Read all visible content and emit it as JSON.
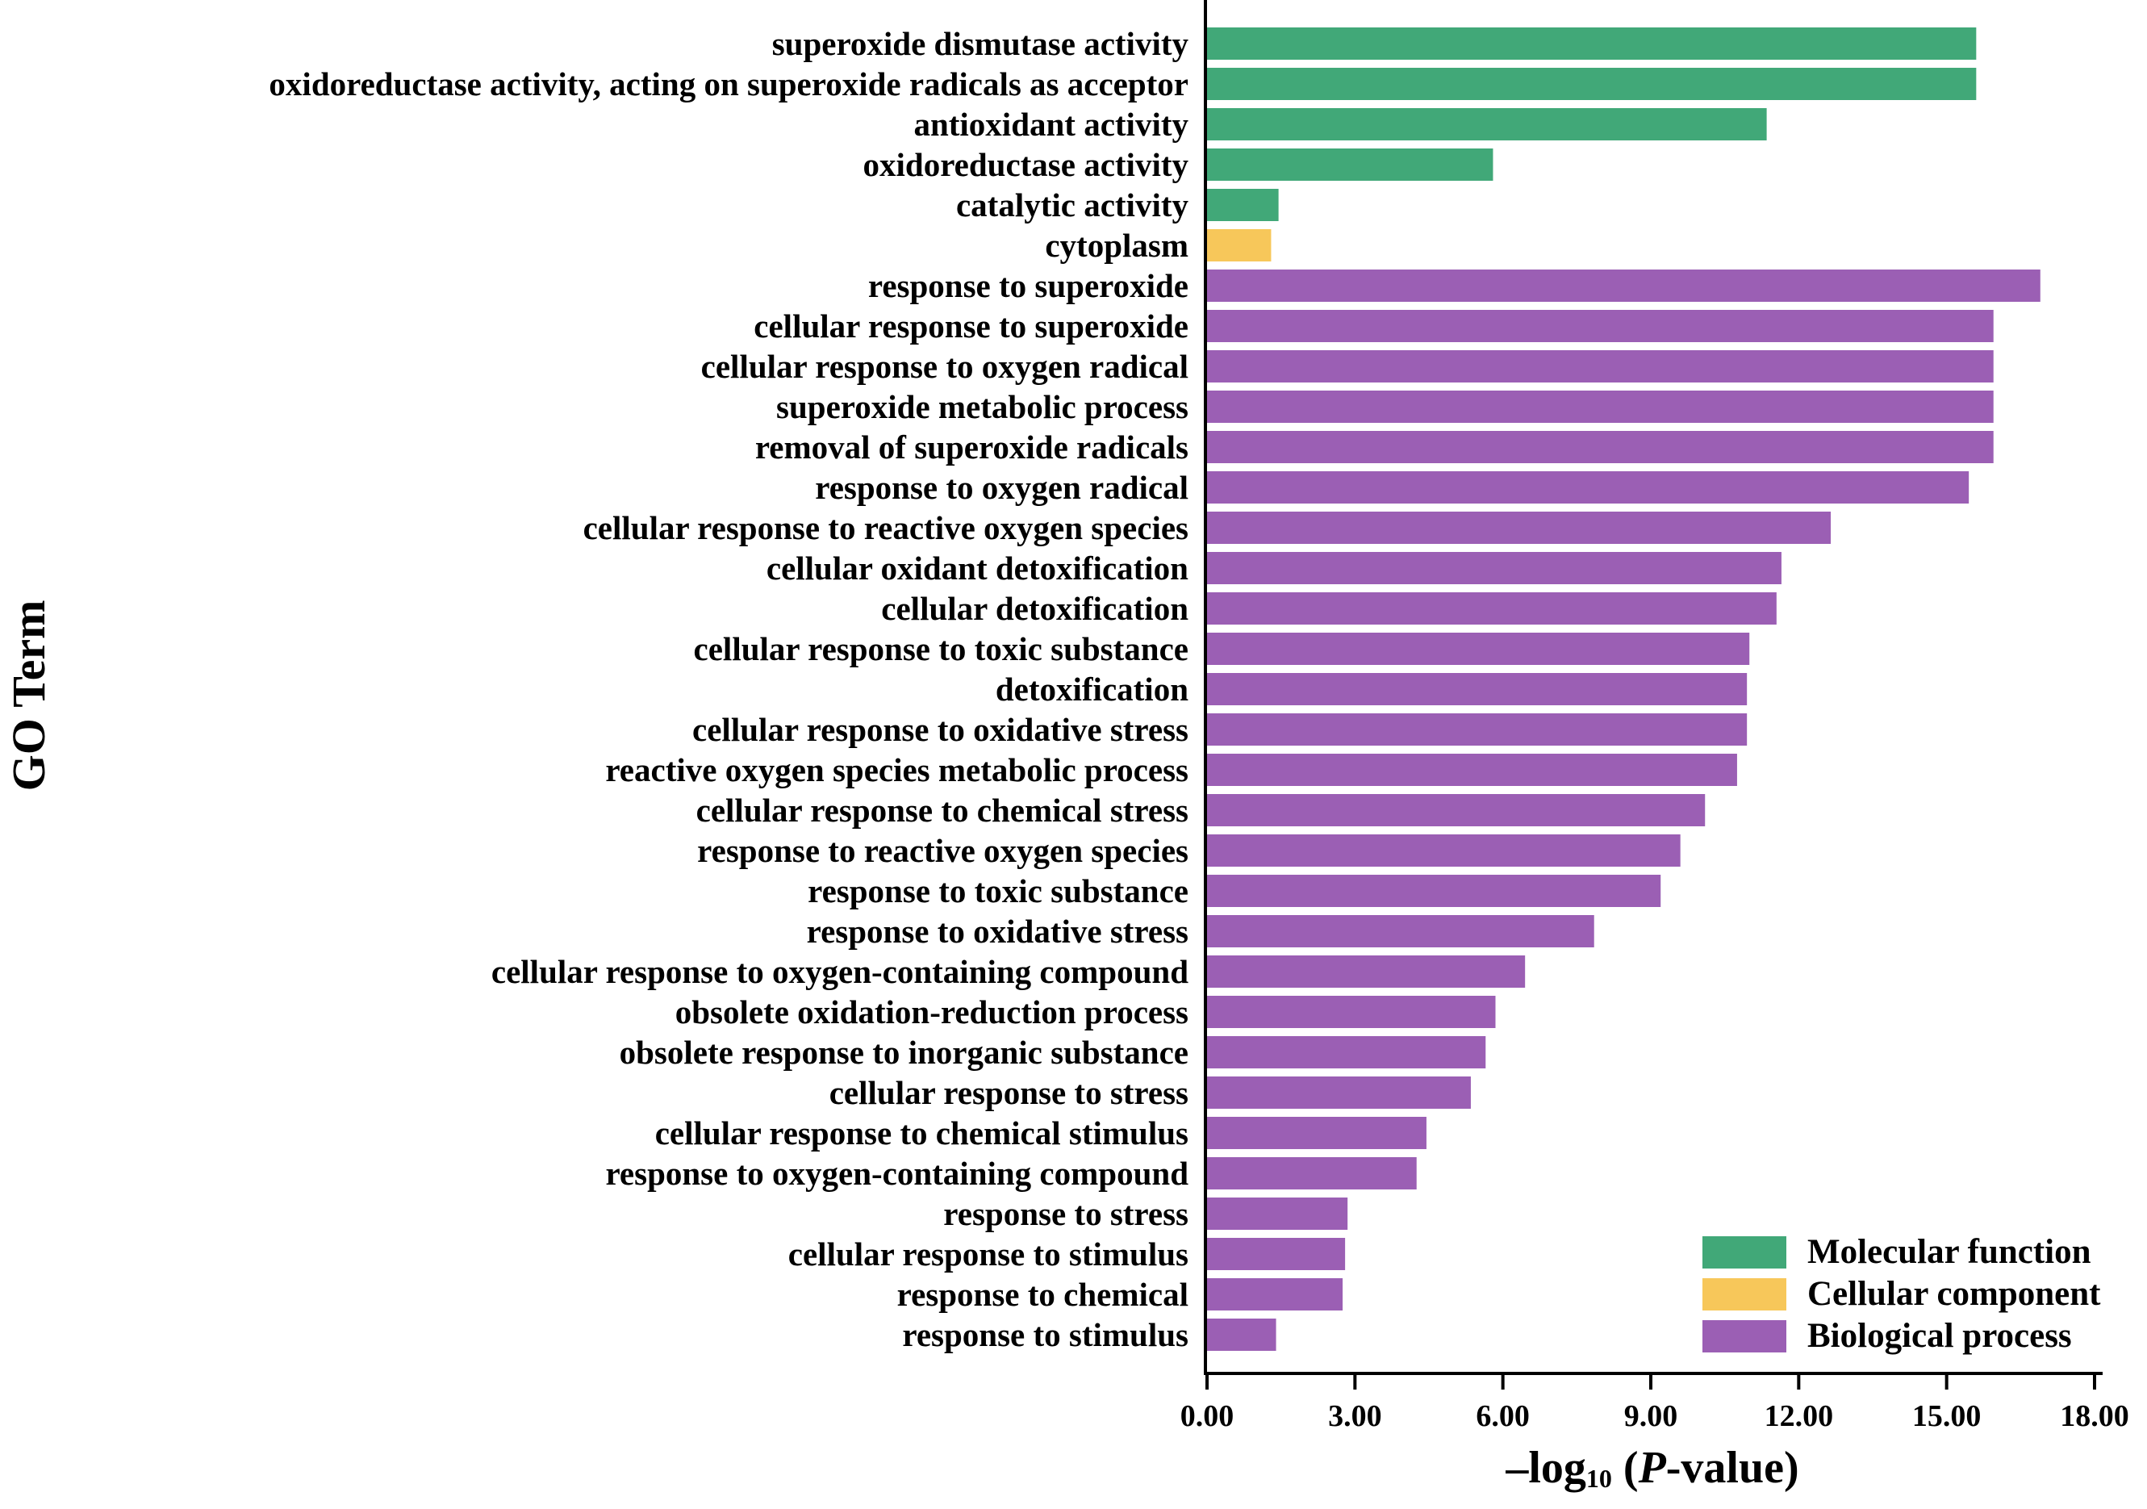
{
  "chart_data": {
    "type": "bar",
    "orientation": "horizontal",
    "ylabel": "GO Term",
    "xlabel": {
      "prefix": "–log",
      "subscript": "10",
      "paren_open": " (",
      "italic": "P",
      "suffix": "-value)"
    },
    "xlim": [
      0,
      18
    ],
    "xticks": [
      "0.00",
      "3.00",
      "6.00",
      "9.00",
      "12.00",
      "15.00",
      "18.00"
    ],
    "categories": [
      "superoxide dismutase activity",
      "oxidoreductase activity, acting on superoxide radicals as acceptor",
      "antioxidant activity",
      "oxidoreductase activity",
      "catalytic activity",
      "cytoplasm",
      "response to superoxide",
      "cellular response to superoxide",
      "cellular response to oxygen radical",
      "superoxide metabolic process",
      "removal of superoxide radicals",
      "response to oxygen radical",
      "cellular response to reactive oxygen species",
      "cellular oxidant detoxification",
      "cellular detoxification",
      "cellular response to toxic substance",
      "detoxification",
      "cellular response to oxidative stress",
      "reactive oxygen species metabolic process",
      "cellular response to chemical stress",
      "response to reactive oxygen species",
      "response to toxic substance",
      "response to oxidative stress",
      "cellular response to oxygen-containing compound",
      "obsolete oxidation-reduction process",
      "obsolete response to inorganic substance",
      "cellular response to stress",
      "cellular response to chemical stimulus",
      "response to oxygen-containing compound",
      "response to stress",
      "cellular response to stimulus",
      "response to chemical",
      "response to stimulus"
    ],
    "values": [
      15.6,
      15.6,
      11.35,
      5.8,
      1.45,
      1.3,
      16.9,
      15.95,
      15.95,
      15.95,
      15.95,
      15.45,
      12.65,
      11.65,
      11.55,
      11.0,
      10.95,
      10.95,
      10.75,
      10.1,
      9.6,
      9.2,
      7.85,
      6.45,
      5.85,
      5.65,
      5.35,
      4.45,
      4.25,
      2.85,
      2.8,
      2.75,
      1.4
    ],
    "groups": [
      "mf",
      "mf",
      "mf",
      "mf",
      "mf",
      "cc",
      "bp",
      "bp",
      "bp",
      "bp",
      "bp",
      "bp",
      "bp",
      "bp",
      "bp",
      "bp",
      "bp",
      "bp",
      "bp",
      "bp",
      "bp",
      "bp",
      "bp",
      "bp",
      "bp",
      "bp",
      "bp",
      "bp",
      "bp",
      "bp",
      "bp",
      "bp",
      "bp"
    ],
    "legend": [
      {
        "key": "mf",
        "name": "Molecular function",
        "color": "#41a878"
      },
      {
        "key": "cc",
        "name": "Cellular component",
        "color": "#f7c75a"
      },
      {
        "key": "bp",
        "name": "Biological process",
        "color": "#9b5fb4"
      }
    ],
    "legend_position": "bottom-right",
    "grid": false
  }
}
